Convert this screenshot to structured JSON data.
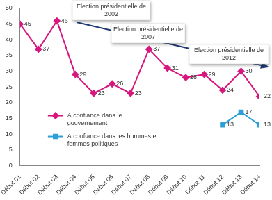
{
  "chart_data": {
    "type": "line",
    "categories": [
      "Début 01",
      "Début 02",
      "Début 03",
      "Début 04",
      "Début 05",
      "Début 06",
      "Début 07",
      "Début 08",
      "Début 09",
      "Début 10",
      "Début 11",
      "Début 12",
      "Début 13",
      "Début 14"
    ],
    "series": [
      {
        "name": "A confiance dans le gouvernement",
        "color": "#d6187e",
        "marker": "diamond",
        "values": [
          45,
          37,
          46,
          29,
          23,
          26,
          23,
          37,
          31,
          28,
          29,
          24,
          30,
          22
        ]
      },
      {
        "name": "A confiance dans les hommes et femmes politiques",
        "color": "#2e9fd8",
        "marker": "square",
        "values": [
          null,
          null,
          null,
          null,
          null,
          null,
          null,
          null,
          null,
          null,
          null,
          13,
          17,
          13
        ]
      }
    ],
    "ylim": [
      0,
      50
    ],
    "yticks": [
      0,
      5,
      10,
      15,
      20,
      25,
      30,
      35,
      40,
      45,
      50
    ],
    "grid": false,
    "legend": "lower left",
    "data_labels": true,
    "annotations": [
      "Election présidentielle de 2002",
      "Election présidentielle de 2007",
      "Election présidentielle de 2012"
    ]
  }
}
